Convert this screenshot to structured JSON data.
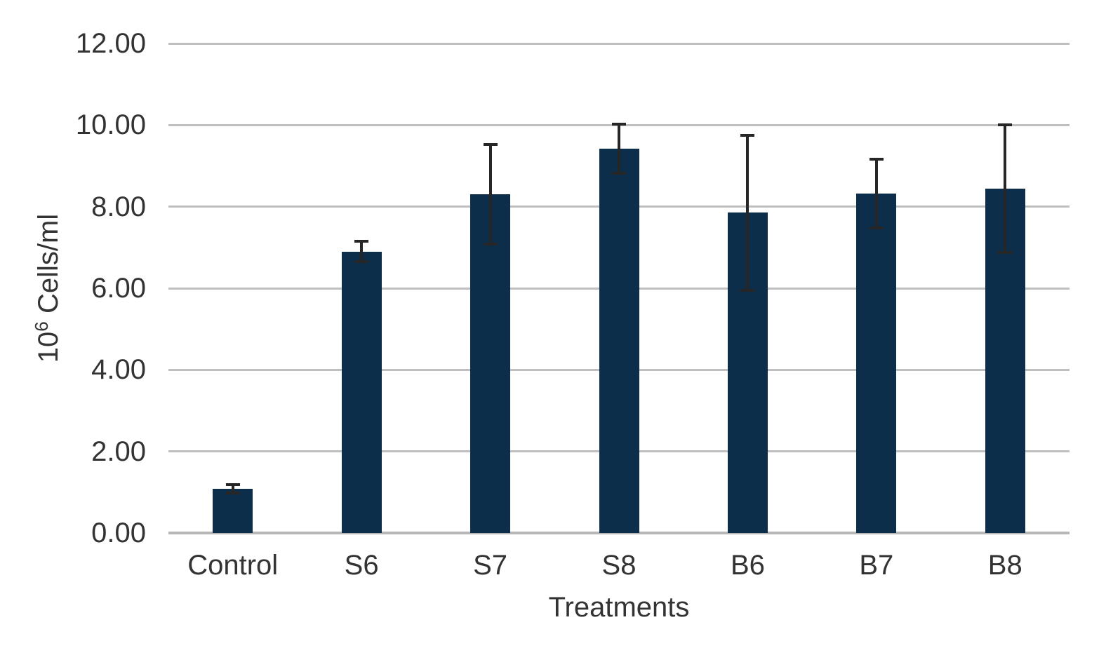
{
  "chart_data": {
    "type": "bar",
    "title": "",
    "categories": [
      "Control",
      "S6",
      "S7",
      "S8",
      "B6",
      "B7",
      "B8"
    ],
    "values": [
      1.08,
      6.9,
      8.3,
      9.42,
      7.85,
      8.32,
      8.44
    ],
    "errors": [
      0.1,
      0.25,
      1.22,
      0.6,
      1.9,
      0.85,
      1.56
    ],
    "series_note": "single series, symmetric error bars with caps",
    "xlabel": "Treatments",
    "ylabel": "10^6 Cells/ml",
    "ylabel_parts": {
      "base": "10",
      "exponent": "6",
      "unit": "Cells/ml"
    },
    "ylim": [
      0,
      12
    ],
    "ytick_step": 2,
    "ytick_decimals": 2,
    "ytick_labels": [
      "0.00",
      "2.00",
      "4.00",
      "6.00",
      "8.00",
      "10.00",
      "12.00"
    ],
    "grid": true,
    "legend": false
  },
  "colors": {
    "bar": "#0c2e4a",
    "error_bar": "#262626",
    "gridline": "#bfbfbf",
    "axis_line": "#b7b7b7",
    "text": "#333333",
    "background": "#ffffff"
  }
}
